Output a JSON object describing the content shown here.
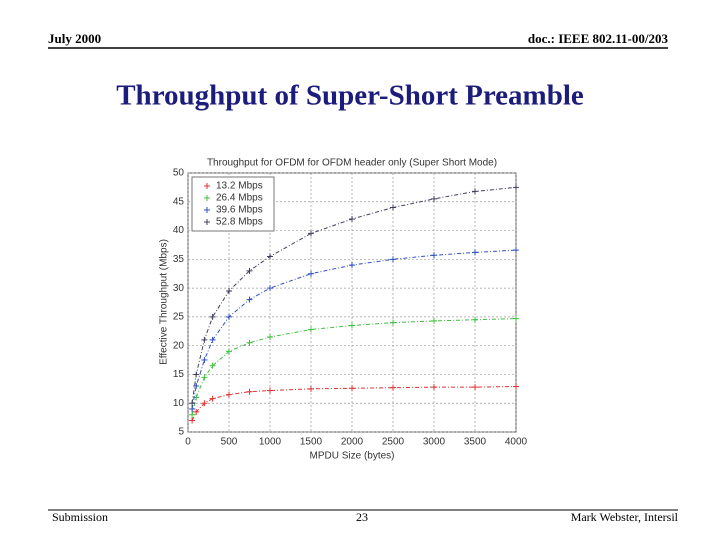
{
  "header": {
    "left": "July 2000",
    "right": "doc.: IEEE 802.11-00/203"
  },
  "slide_title": "Throughput of Super-Short Preamble",
  "footer": {
    "left": "Submission",
    "center": "23",
    "right": "Mark Webster, Intersil"
  },
  "chart_data": {
    "type": "line",
    "title": "Throughput for OFDM for OFDM header only (Super Short Mode)",
    "x_label": "MPDU Size (bytes)",
    "y_label": "Effective Throughput (Mbps)",
    "x": [
      50,
      100,
      200,
      300,
      500,
      750,
      1000,
      1500,
      2000,
      2500,
      3000,
      3500,
      4000
    ],
    "series": [
      {
        "name": "13.2 Mbps",
        "color": "#e03030",
        "values": [
          7,
          8.5,
          10,
          10.8,
          11.5,
          12,
          12.2,
          12.5,
          12.6,
          12.7,
          12.8,
          12.8,
          12.9
        ]
      },
      {
        "name": "26.4 Mbps",
        "color": "#40c040",
        "values": [
          8,
          11,
          14.5,
          16.5,
          19,
          20.5,
          21.5,
          22.8,
          23.5,
          24,
          24.3,
          24.5,
          24.7
        ]
      },
      {
        "name": "39.6 Mbps",
        "color": "#3050c0",
        "values": [
          9,
          13,
          17.5,
          21,
          25,
          28,
          30,
          32.5,
          34,
          35,
          35.7,
          36.2,
          36.6
        ]
      },
      {
        "name": "52.8 Mbps",
        "color": "#404060",
        "values": [
          10,
          15,
          21,
          25,
          29.5,
          33,
          35.5,
          39.5,
          42,
          44,
          45.5,
          46.8,
          47.5
        ]
      }
    ],
    "xlim": [
      0,
      4000
    ],
    "xticks": [
      0,
      500,
      1000,
      1500,
      2000,
      2500,
      3000,
      3500,
      4000
    ],
    "ylim": [
      5,
      50
    ],
    "yticks": [
      5,
      10,
      15,
      20,
      25,
      30,
      35,
      40,
      45,
      50
    ],
    "grid": true,
    "legend": "upper left"
  }
}
